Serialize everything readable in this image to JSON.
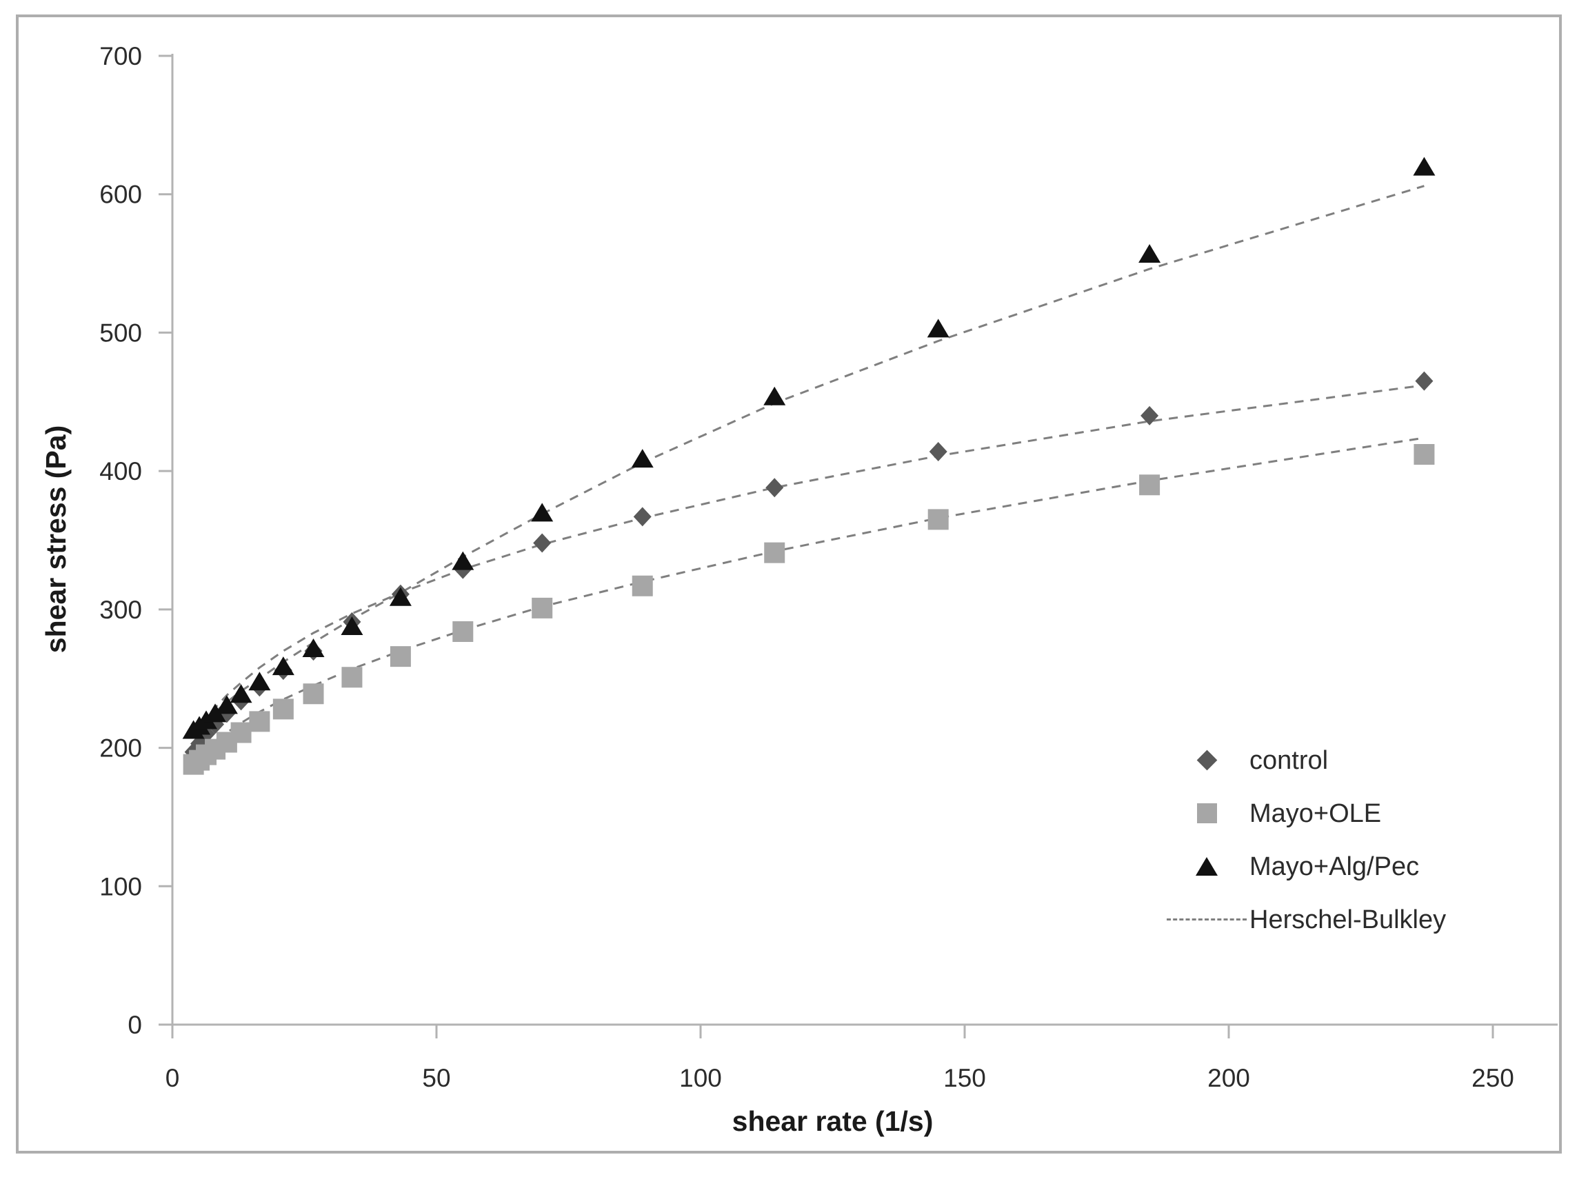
{
  "figure": {
    "background": "#ffffff",
    "border_color": "#aeaeae"
  },
  "axis_style": {
    "line_color": "#b3b3b3",
    "tick_text_color": "#2b2b2b",
    "title_text_color": "#1a1a1a"
  },
  "chart_data": {
    "type": "scatter",
    "title": "",
    "xlabel": "shear rate (1/s)",
    "ylabel": "shear stress (Pa)",
    "xlim": [
      0,
      250
    ],
    "ylim": [
      0,
      700
    ],
    "x_ticks": [
      0,
      50,
      100,
      150,
      200,
      250
    ],
    "y_ticks": [
      0,
      100,
      200,
      300,
      400,
      500,
      600,
      700
    ],
    "grid": false,
    "legend_position": "right-middle-inside",
    "x": [
      4.0,
      5.1,
      6.4,
      8.1,
      10.3,
      13.0,
      16.5,
      21.0,
      26.7,
      34.0,
      43.2,
      55.0,
      70.0,
      89.0,
      114.0,
      145.0,
      185.0,
      237.0
    ],
    "series": [
      {
        "name": "control",
        "marker": "diamond",
        "color": "#595959",
        "values": [
          197,
          203,
          210,
          217,
          225,
          234,
          244,
          256,
          270,
          291,
          311,
          329,
          348,
          367,
          388,
          414,
          440,
          465
        ],
        "fit_values": [
          207,
          214,
          221,
          229,
          238,
          247,
          258,
          270,
          283,
          297,
          312,
          329,
          347,
          366,
          388,
          411,
          436,
          462
        ]
      },
      {
        "name": "Mayo+OLE",
        "marker": "square",
        "color": "#a6a6a6",
        "values": [
          188,
          191,
          195,
          199,
          204,
          211,
          219,
          228,
          239,
          251,
          266,
          284,
          301,
          317,
          341,
          365,
          390,
          412
        ],
        "fit_values": [
          190,
          194,
          199,
          205,
          211,
          218,
          226,
          235,
          245,
          257,
          270,
          285,
          302,
          320,
          342,
          366,
          393,
          424
        ]
      },
      {
        "name": "Mayo+Alg/Pec",
        "marker": "triangle",
        "color": "#111111",
        "values": [
          213,
          216,
          220,
          225,
          231,
          239,
          248,
          259,
          272,
          288,
          309,
          335,
          370,
          409,
          454,
          503,
          557,
          620
        ],
        "fit_values": [
          211,
          215,
          220,
          226,
          233,
          241,
          250,
          262,
          276,
          293,
          312,
          338,
          369,
          406,
          449,
          494,
          546,
          606
        ]
      }
    ],
    "fit_line": {
      "label": "Herschel-Bulkley",
      "color": "#7f7f7f",
      "style": "dashed"
    }
  }
}
